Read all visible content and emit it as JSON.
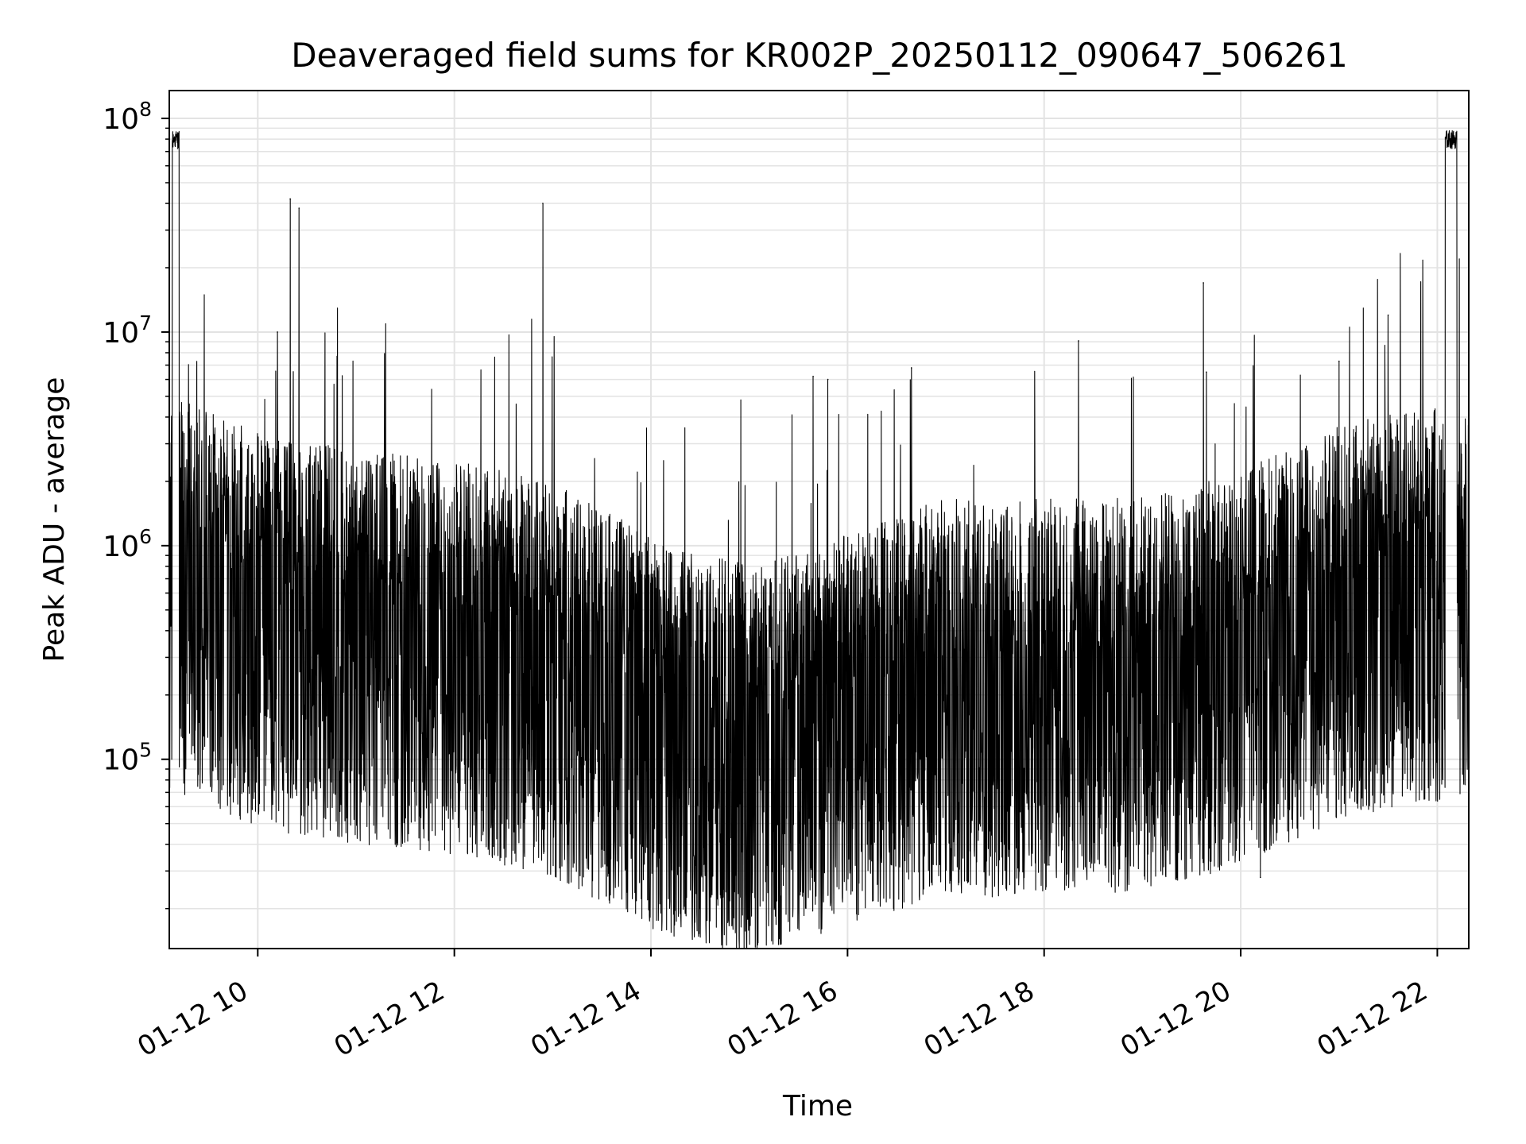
{
  "chart_data": {
    "type": "line",
    "title": "Deaveraged field sums for KR002P_20250112_090647_506261",
    "xlabel": "Time",
    "ylabel": "Peak ADU - average",
    "x_range_hours": [
      9.1,
      22.32
    ],
    "x_ticks": [
      {
        "value": 10,
        "label": "01-12 10"
      },
      {
        "value": 12,
        "label": "01-12 12"
      },
      {
        "value": 14,
        "label": "01-12 14"
      },
      {
        "value": 16,
        "label": "01-12 16"
      },
      {
        "value": 18,
        "label": "01-12 18"
      },
      {
        "value": 20,
        "label": "01-12 20"
      },
      {
        "value": 22,
        "label": "01-12 22"
      }
    ],
    "y_scale": "log",
    "ylim": [
      13000,
      135000000
    ],
    "y_ticks": [
      {
        "value": 100000,
        "base": "10",
        "exp": "5"
      },
      {
        "value": 1000000,
        "base": "10",
        "exp": "6"
      },
      {
        "value": 10000000,
        "base": "10",
        "exp": "7"
      },
      {
        "value": 100000000,
        "base": "10",
        "exp": "8"
      }
    ],
    "grid": true,
    "line_color": "#000000",
    "baseline": [
      {
        "hour": 9.1,
        "value": 900000
      },
      {
        "hour": 10.0,
        "value": 600000
      },
      {
        "hour": 11.0,
        "value": 500000
      },
      {
        "hour": 12.0,
        "value": 450000
      },
      {
        "hour": 13.0,
        "value": 350000
      },
      {
        "hour": 14.0,
        "value": 200000
      },
      {
        "hour": 15.0,
        "value": 150000
      },
      {
        "hour": 16.0,
        "value": 200000
      },
      {
        "hour": 17.0,
        "value": 300000
      },
      {
        "hour": 17.6,
        "value": 280000
      },
      {
        "hour": 18.0,
        "value": 300000
      },
      {
        "hour": 19.0,
        "value": 300000
      },
      {
        "hour": 20.0,
        "value": 400000
      },
      {
        "hour": 21.0,
        "value": 650000
      },
      {
        "hour": 21.9,
        "value": 800000
      },
      {
        "hour": 22.32,
        "value": 700000
      }
    ],
    "plateaus": [
      {
        "start_hour": 9.13,
        "end_hour": 9.2,
        "value": 80000000
      },
      {
        "start_hour": 22.08,
        "end_hour": 22.2,
        "value": 80000000
      }
    ],
    "spikes": [
      {
        "hour": 10.2,
        "value": 10000000
      },
      {
        "hour": 10.33,
        "value": 42000000
      },
      {
        "hour": 10.42,
        "value": 38000000
      },
      {
        "hour": 12.9,
        "value": 40000000
      },
      {
        "hour": 15.65,
        "value": 6200000
      },
      {
        "hour": 15.8,
        "value": 6000000
      },
      {
        "hour": 16.65,
        "value": 6800000
      },
      {
        "hour": 18.35,
        "value": 9100000
      },
      {
        "hour": 19.62,
        "value": 17000000
      },
      {
        "hour": 19.65,
        "value": 6500000
      },
      {
        "hour": 21.0,
        "value": 7300000
      },
      {
        "hour": 21.5,
        "value": 12000000
      }
    ],
    "dips": [
      {
        "hour": 14.35,
        "value": 19000
      },
      {
        "hour": 14.85,
        "value": 24000
      },
      {
        "hour": 15.3,
        "value": 25000
      },
      {
        "hour": 18.05,
        "value": 32000
      },
      {
        "hour": 20.2,
        "value": 28000
      }
    ]
  }
}
